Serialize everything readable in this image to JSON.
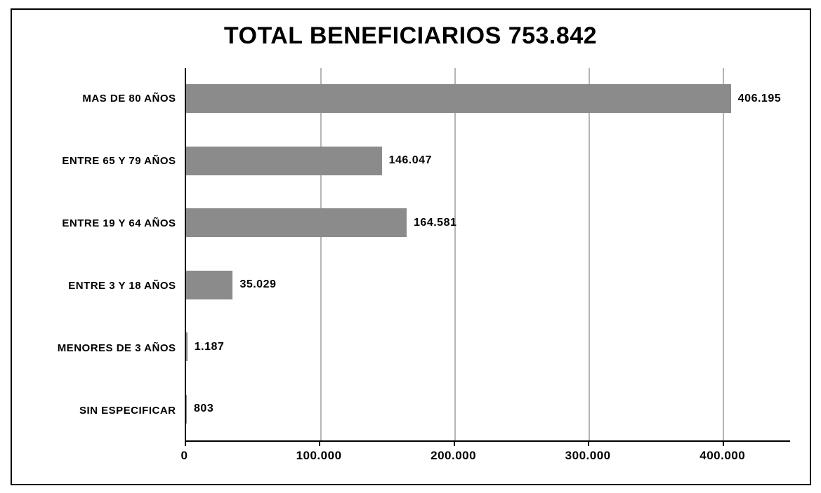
{
  "chart": {
    "type": "bar-horizontal",
    "title": "TOTAL BENEFICIARIOS 753.842",
    "title_fontsize": 34,
    "title_fontweight": "900",
    "background_color": "#ffffff",
    "border_color": "#000000",
    "axis_color": "#000000",
    "grid_color": "#b5b5b5",
    "bar_color": "#8b8b8b",
    "bar_height_ratio": 0.46,
    "label_fontsize": 15,
    "value_fontsize": 16,
    "tick_fontsize": 17,
    "xlim": [
      0,
      450000
    ],
    "xtick_step": 100000,
    "xticks": [
      {
        "value": 0,
        "label": "0"
      },
      {
        "value": 100000,
        "label": "100.000"
      },
      {
        "value": 200000,
        "label": "200.000"
      },
      {
        "value": 300000,
        "label": "300.000"
      },
      {
        "value": 400000,
        "label": "400.000"
      }
    ],
    "categories": [
      {
        "label": "MAS DE 80 AÑOS",
        "value": 406195,
        "value_label": "406.195"
      },
      {
        "label": "ENTRE 65 Y 79 AÑOS",
        "value": 146047,
        "value_label": "146.047"
      },
      {
        "label": "ENTRE 19 Y 64 AÑOS",
        "value": 164581,
        "value_label": "164.581"
      },
      {
        "label": "ENTRE 3 Y 18 AÑOS",
        "value": 35029,
        "value_label": "35.029"
      },
      {
        "label": "MENORES DE 3 AÑOS",
        "value": 1187,
        "value_label": "1.187"
      },
      {
        "label": "SIN ESPECIFICAR",
        "value": 803,
        "value_label": "803"
      }
    ]
  }
}
